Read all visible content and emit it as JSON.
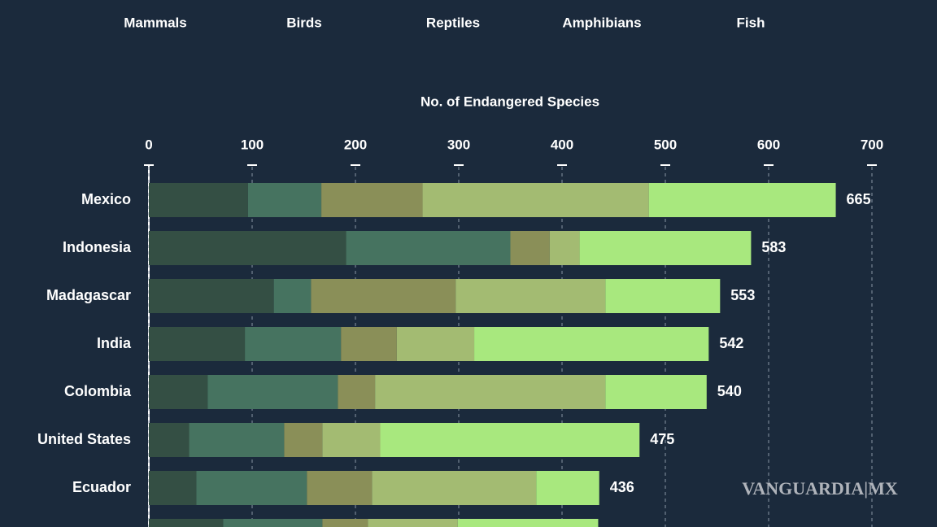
{
  "chart_data": {
    "type": "stacked-bar-horizontal",
    "x_label": "No. of Endangered Species",
    "categories": [
      "Mexico",
      "Indonesia",
      "Madagascar",
      "India",
      "Colombia",
      "United States",
      "Ecuador",
      null
    ],
    "series": [
      {
        "name": "Mammals",
        "color": "#344f44",
        "values": [
          96,
          191,
          121,
          93,
          57,
          39,
          46,
          72
        ]
      },
      {
        "name": "Birds",
        "color": "#467360",
        "values": [
          71,
          159,
          36,
          93,
          126,
          92,
          107,
          96
        ]
      },
      {
        "name": "Reptiles",
        "color": "#8a8f58",
        "values": [
          98,
          38,
          140,
          54,
          36,
          37,
          63,
          44
        ]
      },
      {
        "name": "Amphibians",
        "color": "#a3bb72",
        "values": [
          219,
          29,
          145,
          75,
          223,
          56,
          159,
          87
        ]
      },
      {
        "name": "Fish",
        "color": "#a8e87e",
        "values": [
          181,
          166,
          111,
          227,
          98,
          251,
          61,
          136
        ]
      }
    ],
    "totals": [
      665,
      583,
      553,
      542,
      540,
      475,
      436,
      null
    ],
    "xlim": [
      0,
      700
    ],
    "xticks": [
      0,
      100,
      200,
      300,
      400,
      500,
      600,
      700
    ],
    "grid": true,
    "watermark": "VANGUARDIA|MX"
  }
}
